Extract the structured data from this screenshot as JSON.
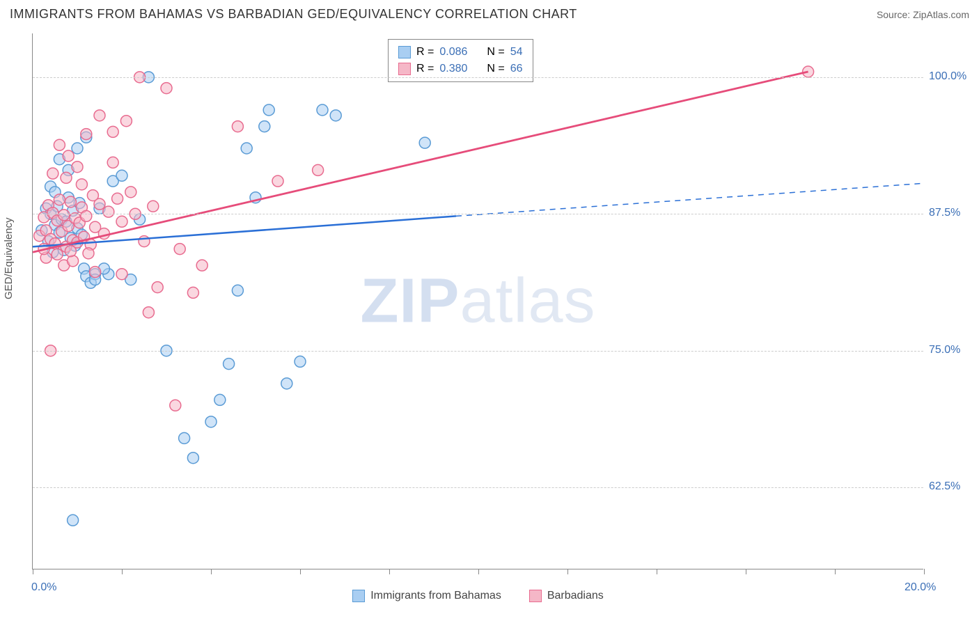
{
  "header": {
    "title": "IMMIGRANTS FROM BAHAMAS VS BARBADIAN GED/EQUIVALENCY CORRELATION CHART",
    "source": "Source: ZipAtlas.com"
  },
  "watermark": {
    "zip": "ZIP",
    "atlas": "atlas"
  },
  "chart": {
    "type": "scatter",
    "ylabel": "GED/Equivalency",
    "xlim": [
      0,
      20
    ],
    "ylim": [
      55,
      104
    ],
    "y_ticks": [
      62.5,
      75.0,
      87.5,
      100.0
    ],
    "y_tick_labels": [
      "62.5%",
      "75.0%",
      "87.5%",
      "100.0%"
    ],
    "x_ticks": [
      0,
      2,
      4,
      6,
      8,
      10,
      12,
      14,
      16,
      18,
      20
    ],
    "x_label_first": "0.0%",
    "x_label_last": "20.0%",
    "grid_color": "#cccccc",
    "axis_color": "#888888",
    "tick_label_color": "#3b6fb6",
    "background_color": "#ffffff",
    "marker_radius": 8,
    "marker_stroke_width": 1.5,
    "series": [
      {
        "name": "Immigrants from Bahamas",
        "fill": "#a9cef2",
        "stroke": "#5a9bd5",
        "fill_opacity": 0.55,
        "R": "0.086",
        "N": "54",
        "trend": {
          "x1": 0,
          "y1": 84.5,
          "x2": 9.5,
          "y2": 87.3,
          "dash_x2": 20,
          "dash_y2": 90.3,
          "color": "#2a6fd6",
          "width": 2.5
        },
        "points": [
          [
            0.2,
            86
          ],
          [
            0.3,
            88
          ],
          [
            0.35,
            85
          ],
          [
            0.4,
            87.5
          ],
          [
            0.45,
            84
          ],
          [
            0.5,
            86.5
          ],
          [
            0.55,
            88.2
          ],
          [
            0.6,
            85.8
          ],
          [
            0.65,
            87
          ],
          [
            0.7,
            84.2
          ],
          [
            0.75,
            86.8
          ],
          [
            0.8,
            89
          ],
          [
            0.85,
            85.3
          ],
          [
            0.9,
            87.8
          ],
          [
            0.95,
            84.6
          ],
          [
            1.0,
            86.2
          ],
          [
            1.05,
            88.5
          ],
          [
            1.1,
            85.6
          ],
          [
            1.15,
            82.5
          ],
          [
            1.2,
            81.8
          ],
          [
            1.3,
            81.2
          ],
          [
            1.4,
            82.0
          ],
          [
            1.5,
            88
          ],
          [
            1.7,
            82
          ],
          [
            1.8,
            90.5
          ],
          [
            2.0,
            91
          ],
          [
            2.2,
            81.5
          ],
          [
            2.4,
            87
          ],
          [
            2.6,
            100
          ],
          [
            3.0,
            75
          ],
          [
            3.4,
            67
          ],
          [
            3.6,
            65.2
          ],
          [
            4.0,
            68.5
          ],
          [
            4.2,
            70.5
          ],
          [
            4.4,
            73.8
          ],
          [
            4.6,
            80.5
          ],
          [
            5.0,
            89
          ],
          [
            5.2,
            95.5
          ],
          [
            5.7,
            72
          ],
          [
            6.0,
            74
          ],
          [
            6.8,
            96.5
          ],
          [
            8.8,
            94
          ],
          [
            0.4,
            90
          ],
          [
            0.6,
            92.5
          ],
          [
            0.8,
            91.5
          ],
          [
            1.0,
            93.5
          ],
          [
            1.2,
            94.5
          ],
          [
            1.4,
            81.5
          ],
          [
            1.6,
            82.5
          ],
          [
            5.3,
            97
          ],
          [
            0.9,
            59.5
          ],
          [
            4.8,
            93.5
          ],
          [
            0.5,
            89.5
          ],
          [
            6.5,
            97
          ]
        ]
      },
      {
        "name": "Barbadians",
        "fill": "#f5b7c7",
        "stroke": "#e86b8f",
        "fill_opacity": 0.55,
        "R": "0.380",
        "N": "66",
        "trend": {
          "x1": 0,
          "y1": 84.0,
          "x2": 17.4,
          "y2": 100.5,
          "color": "#e64c7a",
          "width": 2.8
        },
        "points": [
          [
            0.15,
            85.5
          ],
          [
            0.25,
            87.2
          ],
          [
            0.3,
            86
          ],
          [
            0.35,
            88.3
          ],
          [
            0.4,
            85.2
          ],
          [
            0.45,
            87.6
          ],
          [
            0.5,
            84.8
          ],
          [
            0.55,
            86.9
          ],
          [
            0.6,
            88.8
          ],
          [
            0.65,
            85.9
          ],
          [
            0.7,
            87.4
          ],
          [
            0.75,
            84.5
          ],
          [
            0.8,
            86.4
          ],
          [
            0.85,
            88.6
          ],
          [
            0.9,
            85.1
          ],
          [
            0.95,
            87.1
          ],
          [
            1.0,
            84.9
          ],
          [
            1.05,
            86.7
          ],
          [
            1.1,
            88.1
          ],
          [
            1.15,
            85.4
          ],
          [
            1.2,
            87.3
          ],
          [
            1.3,
            84.7
          ],
          [
            1.4,
            86.3
          ],
          [
            1.5,
            88.4
          ],
          [
            1.6,
            85.7
          ],
          [
            1.7,
            87.7
          ],
          [
            1.8,
            92.2
          ],
          [
            2.0,
            86.8
          ],
          [
            2.2,
            89.5
          ],
          [
            2.5,
            85
          ],
          [
            0.6,
            93.8
          ],
          [
            0.8,
            92.8
          ],
          [
            1.0,
            91.8
          ],
          [
            1.2,
            94.8
          ],
          [
            1.5,
            96.5
          ],
          [
            1.8,
            95
          ],
          [
            2.1,
            96
          ],
          [
            2.4,
            100
          ],
          [
            2.8,
            80.8
          ],
          [
            3.0,
            99
          ],
          [
            3.3,
            84.3
          ],
          [
            3.6,
            80.3
          ],
          [
            3.8,
            82.8
          ],
          [
            4.6,
            95.5
          ],
          [
            5.5,
            90.5
          ],
          [
            6.4,
            91.5
          ],
          [
            0.4,
            75
          ],
          [
            0.7,
            82.8
          ],
          [
            1.4,
            82.2
          ],
          [
            2.0,
            82
          ],
          [
            2.6,
            78.5
          ],
          [
            3.2,
            70
          ],
          [
            0.3,
            83.5
          ],
          [
            0.55,
            83.8
          ],
          [
            0.9,
            83.2
          ],
          [
            1.25,
            83.9
          ],
          [
            17.4,
            100.5
          ],
          [
            2.3,
            87.5
          ],
          [
            1.9,
            88.9
          ],
          [
            1.1,
            90.2
          ],
          [
            0.45,
            91.2
          ],
          [
            0.75,
            90.8
          ],
          [
            2.7,
            88.2
          ],
          [
            1.35,
            89.2
          ],
          [
            0.25,
            84.3
          ],
          [
            0.85,
            84.1
          ]
        ]
      }
    ],
    "bottom_legend": [
      {
        "label": "Immigrants from Bahamas",
        "fill": "#a9cef2",
        "stroke": "#5a9bd5"
      },
      {
        "label": "Barbadians",
        "fill": "#f5b7c7",
        "stroke": "#e86b8f"
      }
    ]
  }
}
